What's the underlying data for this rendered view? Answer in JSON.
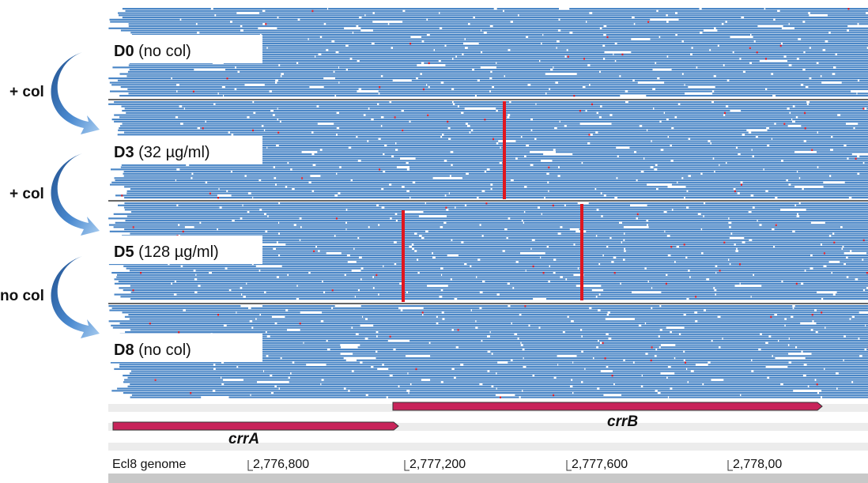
{
  "lanes": [
    {
      "name": "D0",
      "condition": "(no col)"
    },
    {
      "name": "D3",
      "condition": "(32 µg/ml)"
    },
    {
      "name": "D5",
      "condition": "(128 µg/ml)"
    },
    {
      "name": "D8",
      "condition": "(no col)"
    }
  ],
  "steps": [
    "+ col",
    "+ col",
    "no col"
  ],
  "genes": [
    {
      "name": "crrA",
      "color": "#c8245a"
    },
    {
      "name": "crrB",
      "color": "#c8245a"
    }
  ],
  "ruler": {
    "label": "Ecl8 genome",
    "ticks": [
      "2,776,800",
      "2,777,200",
      "2,777,600",
      "2,778,00"
    ]
  },
  "colors": {
    "read": "#4a86c6",
    "read_edge": "#2d6aa8",
    "mismatch": "#e0161f",
    "arrow": "#3f7fc4"
  }
}
